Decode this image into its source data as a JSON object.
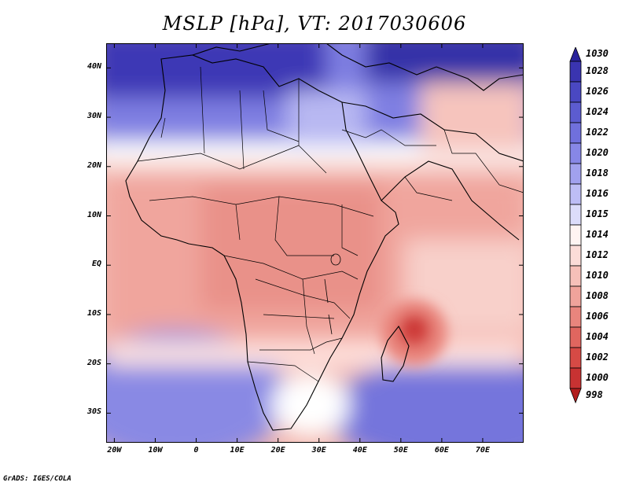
{
  "title": "MSLP [hPa], VT: 2017030606",
  "footer": "GrADS: IGES/COLA",
  "map": {
    "lat_range": [
      -36,
      45
    ],
    "lon_range": [
      -22,
      80
    ],
    "lat_ticks": [
      {
        "value": 40,
        "label": "40N"
      },
      {
        "value": 30,
        "label": "30N"
      },
      {
        "value": 20,
        "label": "20N"
      },
      {
        "value": 10,
        "label": "10N"
      },
      {
        "value": 0,
        "label": "EQ"
      },
      {
        "value": -10,
        "label": "10S"
      },
      {
        "value": -20,
        "label": "20S"
      },
      {
        "value": -30,
        "label": "30S"
      }
    ],
    "lon_ticks": [
      {
        "value": -20,
        "label": "20W"
      },
      {
        "value": -10,
        "label": "10W"
      },
      {
        "value": 0,
        "label": "0"
      },
      {
        "value": 10,
        "label": "10E"
      },
      {
        "value": 20,
        "label": "20E"
      },
      {
        "value": 30,
        "label": "30E"
      },
      {
        "value": 40,
        "label": "40E"
      },
      {
        "value": 50,
        "label": "50E"
      },
      {
        "value": 60,
        "label": "60E"
      },
      {
        "value": 70,
        "label": "70E"
      }
    ]
  },
  "colorbar": {
    "levels": [
      "1030",
      "1028",
      "1026",
      "1024",
      "1022",
      "1020",
      "1018",
      "1016",
      "1015",
      "1014",
      "1012",
      "1010",
      "1008",
      "1006",
      "1004",
      "1002",
      "1000",
      "998"
    ],
    "colors": [
      "#2a239c",
      "#3a34b0",
      "#4a48c2",
      "#5c5cd0",
      "#7070dc",
      "#8787e6",
      "#a1a1ee",
      "#bdbdf5",
      "#dcdcfa",
      "#fff4f2",
      "#fbdcd8",
      "#f6c0b9",
      "#f0a39b",
      "#e9857d",
      "#e0665f",
      "#d64a45",
      "#c83232",
      "#b21e1e"
    ]
  }
}
